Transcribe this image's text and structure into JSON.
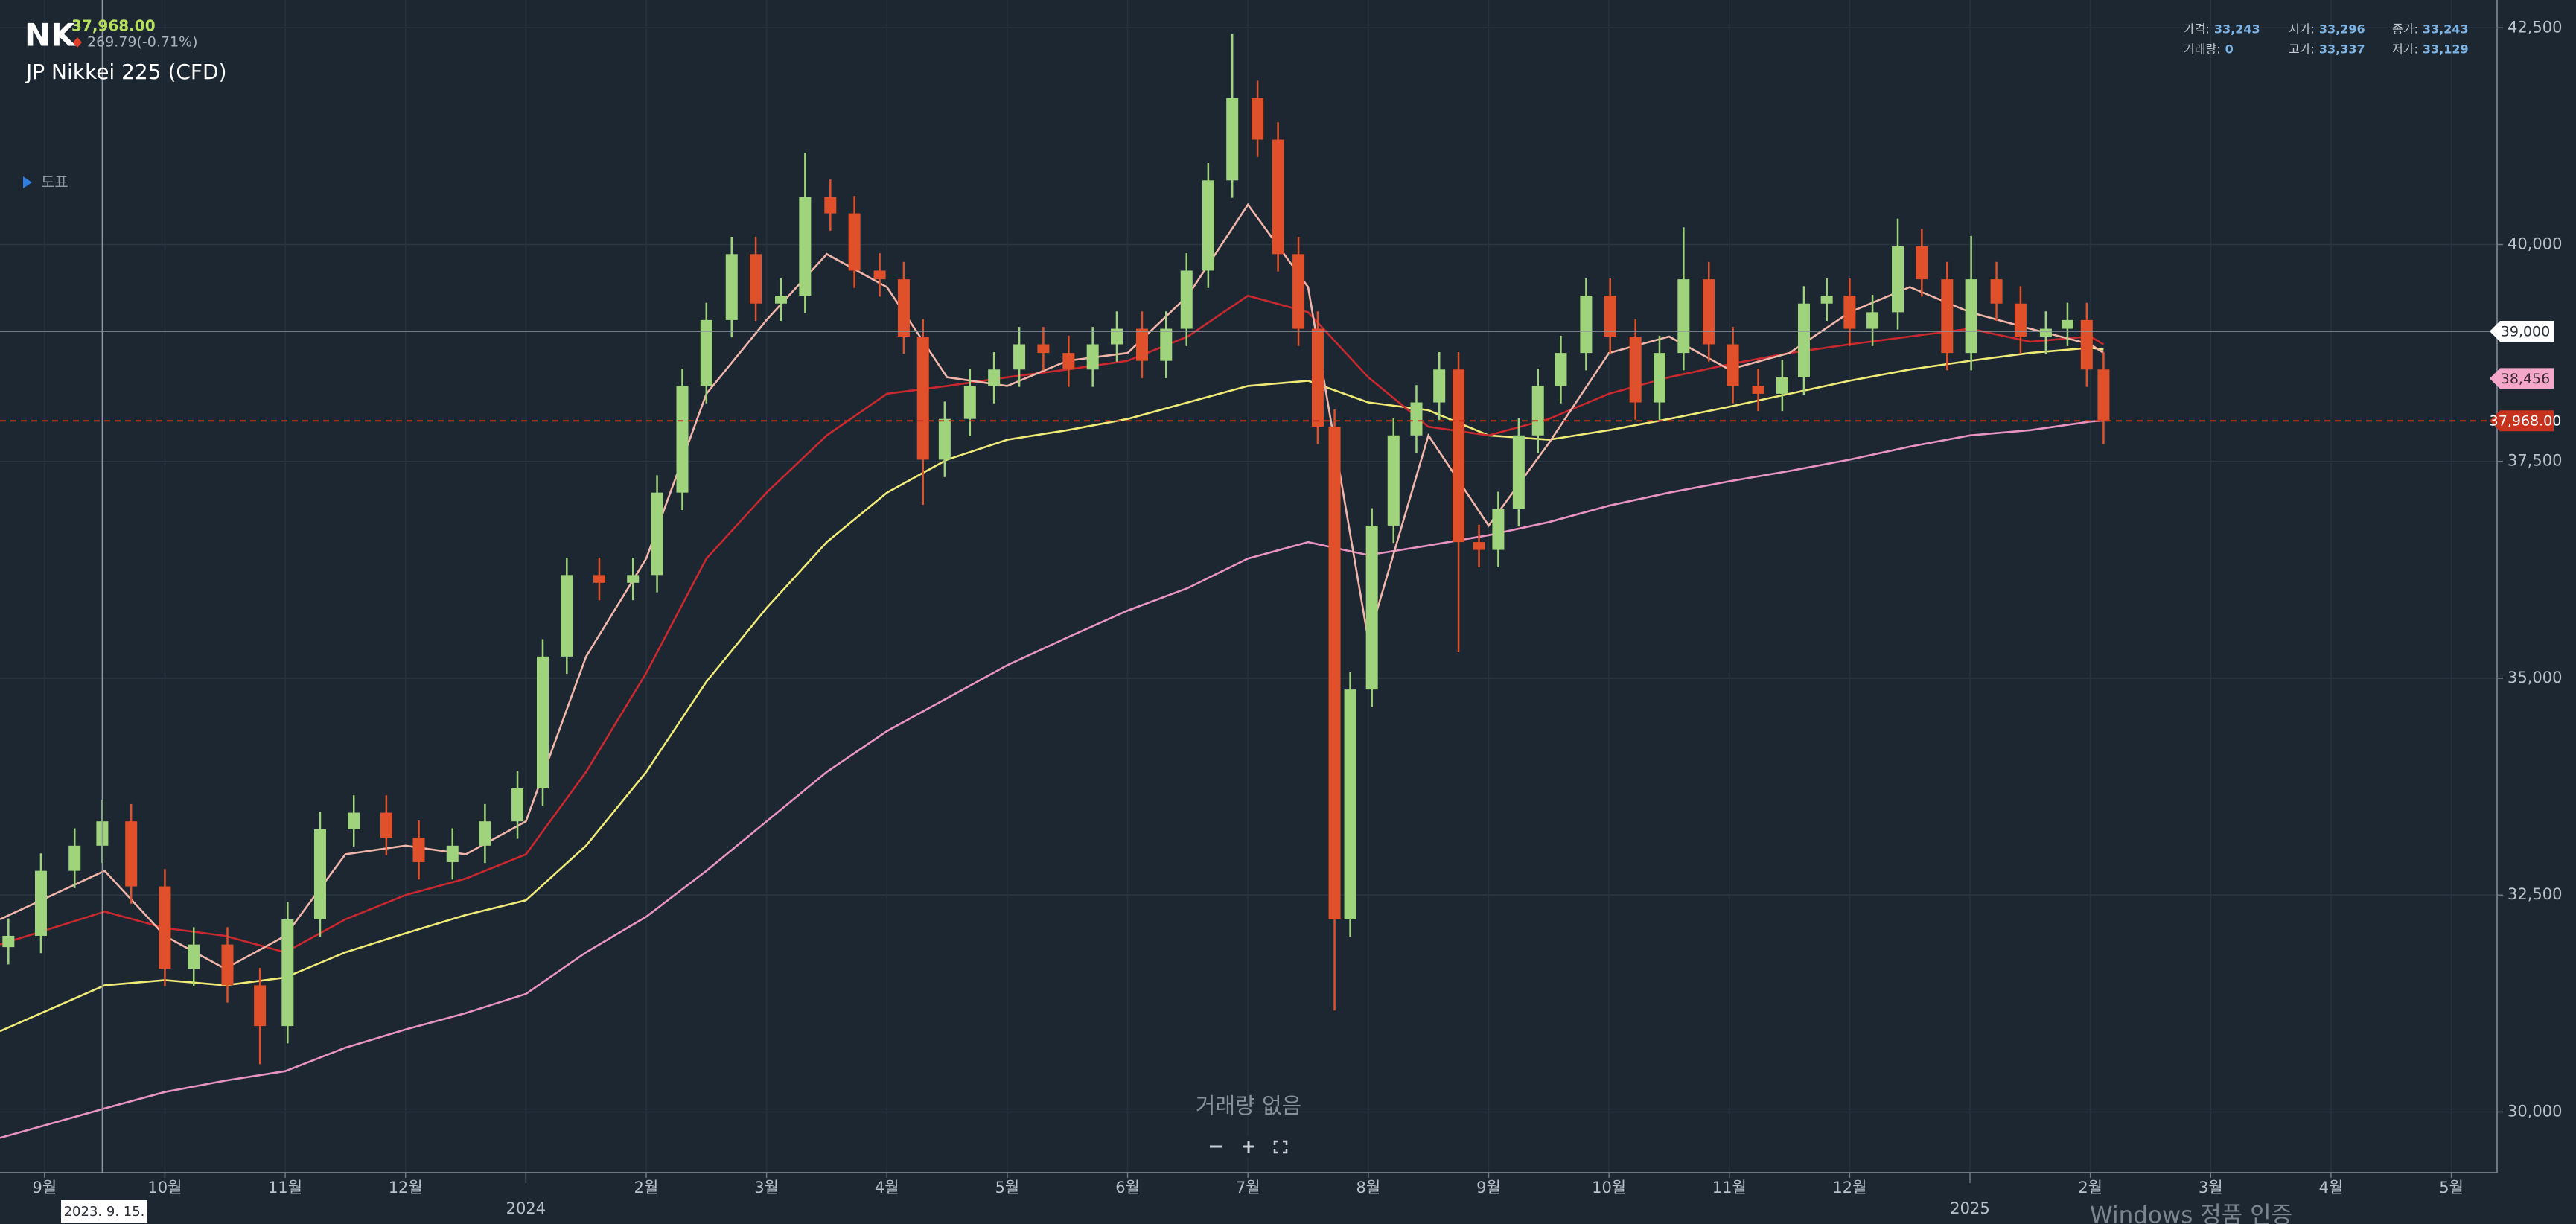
{
  "chart_data": {
    "type": "candlestick",
    "symbol": "NK",
    "last_price": "37,968.00",
    "change": "269.79(-0.71%)",
    "name": "JP Nikkei 225 (CFD)",
    "toggle": "도표",
    "info": [
      {
        "label": "가격:",
        "value": "33,243"
      },
      {
        "label": "시가:",
        "value": "33,296"
      },
      {
        "label": "종가:",
        "value": "33,243"
      },
      {
        "label": "거래량:",
        "value": "0"
      },
      {
        "label": "고가:",
        "value": "33,337"
      },
      {
        "label": "저가:",
        "value": "33,129"
      }
    ],
    "no_volume": "거래량 없음",
    "watermark": "Windows 정품 인증",
    "grid": true,
    "xlim": [
      -4.37,
      16.38
    ],
    "ylim": [
      29300,
      42820
    ],
    "xticks": [
      {
        "value": -4,
        "label": "9월"
      },
      {
        "value": -3,
        "label": "10월"
      },
      {
        "value": -2,
        "label": "11월"
      },
      {
        "value": -1,
        "label": "12월"
      },
      {
        "value": 0,
        "label": "2024"
      },
      {
        "value": 1,
        "label": "2월"
      },
      {
        "value": 2,
        "label": "3월"
      },
      {
        "value": 3,
        "label": "4월"
      },
      {
        "value": 4,
        "label": "5월"
      },
      {
        "value": 5,
        "label": "6월"
      },
      {
        "value": 6,
        "label": "7월"
      },
      {
        "value": 7,
        "label": "8월"
      },
      {
        "value": 8,
        "label": "9월"
      },
      {
        "value": 9,
        "label": "10월"
      },
      {
        "value": 10,
        "label": "11월"
      },
      {
        "value": 11,
        "label": "12월"
      },
      {
        "value": 12,
        "label": "2025"
      },
      {
        "value": 13,
        "label": "2월"
      },
      {
        "value": 14,
        "label": "3월"
      },
      {
        "value": 15,
        "label": "4월"
      },
      {
        "value": 16,
        "label": "5월"
      }
    ],
    "yticks": [
      {
        "value": 30000,
        "label": "30,000"
      },
      {
        "value": 32500,
        "label": "32,500"
      },
      {
        "value": 35000,
        "label": "35,000"
      },
      {
        "value": 37500,
        "label": "37,500"
      },
      {
        "value": 40000,
        "label": "40,000"
      },
      {
        "value": 42500,
        "label": "42,500"
      }
    ],
    "up_color": "#9fd47c",
    "down_color": "#e0502a",
    "candles": {
      "x": [
        -4.3,
        -4.03,
        -3.75,
        -3.52,
        -3.28,
        -3.0,
        -2.76,
        -2.48,
        -2.21,
        -1.98,
        -1.71,
        -1.43,
        -1.16,
        -0.89,
        -0.61,
        -0.34,
        -0.07,
        0.14,
        0.34,
        0.61,
        0.89,
        1.09,
        1.3,
        1.5,
        1.71,
        1.91,
        2.12,
        2.32,
        2.53,
        2.73,
        2.94,
        3.14,
        3.3,
        3.48,
        3.69,
        3.89,
        4.1,
        4.3,
        4.51,
        4.71,
        4.91,
        5.12,
        5.32,
        5.49,
        5.67,
        5.87,
        6.08,
        6.25,
        6.42,
        6.58,
        6.72,
        6.85,
        7.03,
        7.21,
        7.4,
        7.59,
        7.75,
        7.92,
        8.08,
        8.25,
        8.41,
        8.6,
        8.81,
        9.01,
        9.22,
        9.42,
        9.62,
        9.83,
        10.03,
        10.24,
        10.44,
        10.62,
        10.81,
        11.0,
        11.19,
        11.4,
        11.6,
        11.81,
        12.01,
        12.22,
        12.42,
        12.63,
        12.81,
        12.97,
        13.11
      ],
      "open": [
        31900,
        32030,
        32780,
        33070,
        33350,
        32600,
        31650,
        31930,
        31460,
        30990,
        32220,
        33260,
        33450,
        33160,
        32880,
        33070,
        33350,
        33730,
        35250,
        36190,
        36100,
        36190,
        37140,
        38370,
        39130,
        39890,
        39320,
        39410,
        40550,
        40360,
        39700,
        39600,
        38940,
        37520,
        37990,
        38370,
        38560,
        38850,
        38750,
        38560,
        38850,
        39030,
        38660,
        39030,
        39700,
        40740,
        41690,
        41210,
        39890,
        39030,
        37900,
        32220,
        34870,
        36760,
        37800,
        38180,
        38560,
        36570,
        36480,
        36950,
        37800,
        38370,
        38750,
        39410,
        38940,
        38180,
        38750,
        39600,
        38850,
        38370,
        38280,
        38470,
        39320,
        39410,
        39030,
        39220,
        39980,
        39600,
        38750,
        39600,
        39320,
        38940,
        39030,
        39130,
        38560
      ],
      "high": [
        32230,
        32980,
        33270,
        33600,
        33550,
        32800,
        32130,
        32130,
        31660,
        32420,
        33460,
        33650,
        33650,
        33360,
        33270,
        33550,
        33930,
        35450,
        36390,
        36390,
        36390,
        37340,
        38570,
        39330,
        40090,
        40090,
        39610,
        41060,
        40750,
        40560,
        39900,
        39800,
        39140,
        38190,
        38570,
        38760,
        39050,
        39050,
        38950,
        39050,
        39230,
        39230,
        39230,
        39900,
        40940,
        42430,
        41890,
        41410,
        40090,
        39230,
        38100,
        35070,
        36960,
        38000,
        38380,
        38760,
        38760,
        36770,
        37150,
        38000,
        38570,
        38950,
        39610,
        39610,
        39140,
        38950,
        40200,
        39800,
        39050,
        38570,
        38670,
        39520,
        39610,
        39610,
        39420,
        40300,
        40180,
        39800,
        40100,
        39800,
        39520,
        39230,
        39330,
        39330,
        38760
      ],
      "low": [
        31700,
        31830,
        32580,
        32870,
        32400,
        31450,
        31450,
        31260,
        30550,
        30790,
        32020,
        33060,
        32960,
        32680,
        32680,
        32870,
        33150,
        33530,
        35050,
        35900,
        35900,
        35990,
        36940,
        38170,
        38930,
        39120,
        39120,
        39210,
        40160,
        39500,
        39400,
        38740,
        37000,
        37320,
        37790,
        38170,
        38360,
        38550,
        38360,
        38360,
        38650,
        38460,
        38460,
        38830,
        39500,
        40540,
        41010,
        39690,
        38830,
        37700,
        31170,
        32020,
        34670,
        36560,
        37600,
        37980,
        35300,
        36280,
        36280,
        36750,
        37600,
        38170,
        38550,
        38740,
        37980,
        37980,
        38550,
        38650,
        38170,
        38080,
        38080,
        38270,
        39120,
        38830,
        38830,
        39020,
        39400,
        38550,
        38550,
        39120,
        38740,
        38740,
        38830,
        38360,
        37700
      ],
      "close": [
        32030,
        32780,
        33070,
        33350,
        32600,
        31650,
        31930,
        31460,
        30990,
        32220,
        33260,
        33450,
        33160,
        32880,
        33070,
        33350,
        33730,
        35250,
        36190,
        36100,
        36190,
        37140,
        38370,
        39130,
        39890,
        39320,
        39410,
        40550,
        40360,
        39700,
        39600,
        38940,
        37520,
        37990,
        38370,
        38560,
        38850,
        38750,
        38560,
        38850,
        39030,
        38660,
        39030,
        39700,
        40740,
        41690,
        41210,
        39890,
        39030,
        37900,
        32220,
        34870,
        36760,
        37800,
        38180,
        38560,
        36570,
        36480,
        36950,
        37800,
        38370,
        38750,
        39410,
        38940,
        38180,
        38750,
        39600,
        38850,
        38370,
        38280,
        38470,
        39320,
        39410,
        39030,
        39220,
        39980,
        39600,
        38750,
        39600,
        39320,
        38940,
        39030,
        39130,
        38560,
        37968
      ]
    },
    "ma_x": [
      -4.37,
      -3.5,
      -3,
      -2.5,
      -2,
      -1.5,
      -1,
      -0.5,
      0,
      0.5,
      1,
      1.5,
      2,
      2.5,
      3,
      3.5,
      4,
      4.5,
      5,
      5.5,
      6,
      6.5,
      7,
      7.5,
      8,
      8.5,
      9,
      9.5,
      10,
      10.5,
      11,
      11.5,
      12,
      12.5,
      13,
      13.11
    ],
    "ma_series": [
      {
        "color": "#e993c3",
        "values": [
          29700,
          30040,
          30230,
          30360,
          30470,
          30740,
          30950,
          31140,
          31360,
          31840,
          32250,
          32780,
          33350,
          33920,
          34390,
          34770,
          35150,
          35470,
          35780,
          36040,
          36380,
          36570,
          36420,
          36530,
          36650,
          36800,
          36990,
          37140,
          37270,
          37390,
          37520,
          37670,
          37800,
          37860,
          37960,
          37970
        ]
      },
      {
        "color": "#f0ea76",
        "values": [
          30930,
          31460,
          31520,
          31460,
          31550,
          31840,
          32060,
          32270,
          32440,
          33070,
          33920,
          34960,
          35810,
          36570,
          37140,
          37520,
          37750,
          37860,
          37990,
          38180,
          38370,
          38430,
          38180,
          38090,
          37800,
          37750,
          37860,
          37990,
          38130,
          38280,
          38430,
          38560,
          38660,
          38750,
          38810,
          38790
        ]
      },
      {
        "color": "#c8282e",
        "values": [
          31930,
          32310,
          32120,
          32030,
          31840,
          32220,
          32500,
          32690,
          32970,
          33920,
          35060,
          36380,
          37140,
          37800,
          38280,
          38370,
          38470,
          38560,
          38660,
          38940,
          39410,
          39220,
          38470,
          37900,
          37800,
          37990,
          38280,
          38470,
          38620,
          38750,
          38850,
          38940,
          39030,
          38880,
          38940,
          38850
        ]
      },
      {
        "color": "#f1b5a9",
        "values": [
          32220,
          32780,
          32030,
          31650,
          32030,
          32970,
          33070,
          32970,
          33350,
          35250,
          36380,
          38280,
          39130,
          39890,
          39510,
          38470,
          38370,
          38660,
          38750,
          39410,
          40460,
          39510,
          35440,
          37800,
          36760,
          37710,
          38750,
          38940,
          38560,
          38750,
          39220,
          39510,
          39220,
          39030,
          38850,
          38750
        ]
      }
    ],
    "crosshair": {
      "x": -3.52,
      "x_label": "2023. 9. 15.",
      "y": 39000,
      "y_label": "39,000"
    },
    "price_tags": [
      {
        "value": 38456,
        "label": "38,456",
        "color": "#f4a7c8"
      },
      {
        "value": 37968,
        "label": "37,968.00",
        "color": "#c6321d"
      }
    ]
  }
}
